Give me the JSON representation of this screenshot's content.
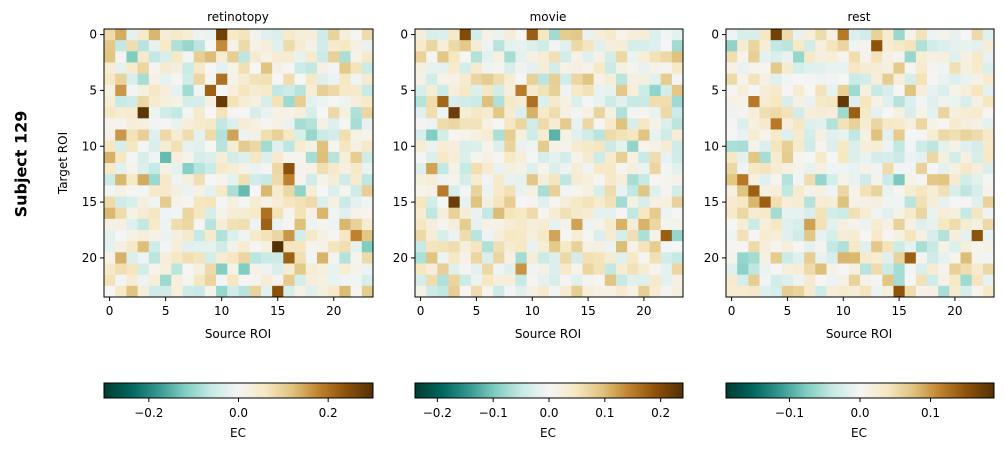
{
  "figure_label": "Subject 129",
  "chart_data": [
    {
      "type": "heatmap",
      "title": "retinotopy",
      "xlabel": "Source ROI",
      "ylabel": "Target ROI",
      "n_rows": 24,
      "n_cols": 24,
      "x_ticks": [
        0,
        5,
        10,
        15,
        20
      ],
      "y_ticks": [
        0,
        5,
        10,
        15,
        20
      ],
      "colormap": "BrBG_r",
      "colorbar": {
        "label": "EC",
        "range": [
          -0.3,
          0.3
        ],
        "ticks": [
          -0.2,
          0.0,
          0.2
        ],
        "tick_labels": [
          "−0.2",
          "0.0",
          "0.2"
        ]
      },
      "notable_cells": [
        {
          "row": 0,
          "col": 10,
          "value": 0.27
        },
        {
          "row": 0,
          "col": 1,
          "value": 0.14
        },
        {
          "row": 0,
          "col": 4,
          "value": 0.13
        },
        {
          "row": 1,
          "col": 10,
          "value": 0.17
        },
        {
          "row": 2,
          "col": 2,
          "value": -0.12
        },
        {
          "row": 4,
          "col": 10,
          "value": 0.2
        },
        {
          "row": 5,
          "col": 1,
          "value": 0.16
        },
        {
          "row": 5,
          "col": 9,
          "value": 0.22
        },
        {
          "row": 6,
          "col": 10,
          "value": 0.28
        },
        {
          "row": 7,
          "col": 3,
          "value": 0.29
        },
        {
          "row": 9,
          "col": 1,
          "value": 0.16
        },
        {
          "row": 11,
          "col": 5,
          "value": -0.14
        },
        {
          "row": 12,
          "col": 16,
          "value": 0.24
        },
        {
          "row": 13,
          "col": 16,
          "value": 0.18
        },
        {
          "row": 14,
          "col": 12,
          "value": -0.14
        },
        {
          "row": 16,
          "col": 14,
          "value": 0.2
        },
        {
          "row": 17,
          "col": 14,
          "value": 0.22
        },
        {
          "row": 18,
          "col": 16,
          "value": 0.16
        },
        {
          "row": 19,
          "col": 15,
          "value": 0.3
        },
        {
          "row": 20,
          "col": 16,
          "value": 0.22
        },
        {
          "row": 21,
          "col": 12,
          "value": -0.12
        },
        {
          "row": 23,
          "col": 15,
          "value": 0.24
        },
        {
          "row": 18,
          "col": 22,
          "value": 0.18
        },
        {
          "row": 19,
          "col": 23,
          "value": -0.12
        }
      ]
    },
    {
      "type": "heatmap",
      "title": "movie",
      "xlabel": "Source ROI",
      "ylabel": "",
      "n_rows": 24,
      "n_cols": 24,
      "x_ticks": [
        0,
        5,
        10,
        15,
        20
      ],
      "y_ticks": [
        0,
        5,
        10,
        15,
        20
      ],
      "colormap": "BrBG_r",
      "colorbar": {
        "label": "EC",
        "range": [
          -0.24,
          0.24
        ],
        "ticks": [
          -0.2,
          -0.1,
          0.0,
          0.1,
          0.2
        ],
        "tick_labels": [
          "−0.2",
          "−0.1",
          "0.0",
          "0.1",
          "0.2"
        ]
      },
      "notable_cells": [
        {
          "row": 0,
          "col": 4,
          "value": 0.2
        },
        {
          "row": 0,
          "col": 10,
          "value": 0.18
        },
        {
          "row": 5,
          "col": 9,
          "value": 0.15
        },
        {
          "row": 6,
          "col": 2,
          "value": 0.17
        },
        {
          "row": 7,
          "col": 3,
          "value": 0.22
        },
        {
          "row": 6,
          "col": 10,
          "value": 0.16
        },
        {
          "row": 9,
          "col": 12,
          "value": -0.12
        },
        {
          "row": 12,
          "col": 1,
          "value": 0.12
        },
        {
          "row": 14,
          "col": 2,
          "value": 0.15
        },
        {
          "row": 15,
          "col": 3,
          "value": 0.22
        },
        {
          "row": 17,
          "col": 14,
          "value": 0.12
        },
        {
          "row": 18,
          "col": 22,
          "value": 0.18
        },
        {
          "row": 21,
          "col": 9,
          "value": 0.13
        }
      ]
    },
    {
      "type": "heatmap",
      "title": "rest",
      "xlabel": "Source ROI",
      "ylabel": "",
      "n_rows": 24,
      "n_cols": 24,
      "x_ticks": [
        0,
        5,
        10,
        15,
        20
      ],
      "y_ticks": [
        0,
        5,
        10,
        15,
        20
      ],
      "colormap": "BrBG_r",
      "colorbar": {
        "label": "EC",
        "range": [
          -0.19,
          0.19
        ],
        "ticks": [
          -0.1,
          0.0,
          0.1
        ],
        "tick_labels": [
          "−0.1",
          "0.0",
          "0.1"
        ]
      },
      "notable_cells": [
        {
          "row": 0,
          "col": 4,
          "value": 0.17
        },
        {
          "row": 0,
          "col": 10,
          "value": 0.12
        },
        {
          "row": 1,
          "col": 13,
          "value": 0.15
        },
        {
          "row": 6,
          "col": 2,
          "value": 0.12
        },
        {
          "row": 6,
          "col": 10,
          "value": 0.18
        },
        {
          "row": 7,
          "col": 11,
          "value": 0.14
        },
        {
          "row": 8,
          "col": 4,
          "value": 0.12
        },
        {
          "row": 13,
          "col": 1,
          "value": 0.12
        },
        {
          "row": 14,
          "col": 2,
          "value": 0.14
        },
        {
          "row": 15,
          "col": 3,
          "value": 0.14
        },
        {
          "row": 18,
          "col": 22,
          "value": 0.15
        },
        {
          "row": 20,
          "col": 16,
          "value": 0.14
        },
        {
          "row": 23,
          "col": 15,
          "value": 0.15
        }
      ]
    }
  ]
}
